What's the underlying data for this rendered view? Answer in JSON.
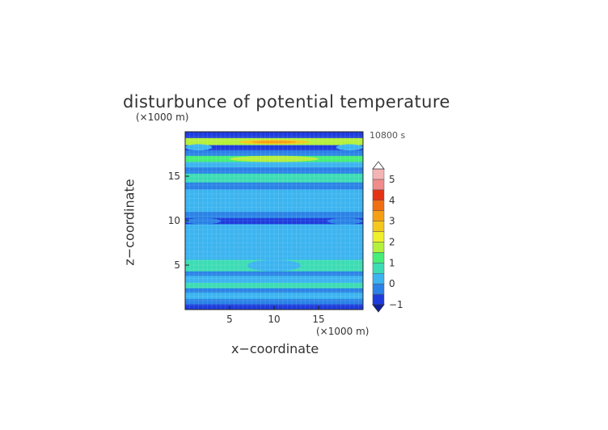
{
  "chart_data": {
    "type": "heatmap",
    "title": "disturbunce of potential temperature",
    "xlabel": "x−coordinate",
    "ylabel": "z−coordinate",
    "x_unit": "(×1000 m)",
    "z_unit": "(×1000 m)",
    "time_label": "10800 s",
    "xlim": [
      0,
      20
    ],
    "ylim": [
      0,
      20
    ],
    "x_ticks": [
      5,
      10,
      15
    ],
    "y_ticks": [
      5,
      10,
      15
    ],
    "grid": true,
    "colorbar": {
      "levels": [
        -1,
        -0.5,
        0,
        0.5,
        1,
        1.5,
        2,
        2.5,
        3,
        3.5,
        4,
        4.5,
        5
      ],
      "tick_labels": [
        5,
        4,
        3,
        2,
        1,
        0,
        -1
      ],
      "colors": [
        "#1e3cdc",
        "#2a82e6",
        "#3cb4f0",
        "#3cdcb4",
        "#46ee78",
        "#b4f03c",
        "#f0f02a",
        "#f5c81e",
        "#f5a014",
        "#f06e14",
        "#e63214",
        "#f08c8c",
        "#f5b4b4"
      ],
      "extend": "both"
    },
    "bands": [
      {
        "z": [
          0.0,
          0.6
        ],
        "level": -1
      },
      {
        "z": [
          0.6,
          1.2
        ],
        "level": -0.5
      },
      {
        "z": [
          1.2,
          1.9
        ],
        "level": 0
      },
      {
        "z": [
          1.9,
          2.4
        ],
        "level": -0.5
      },
      {
        "z": [
          2.4,
          3.0
        ],
        "level": 0.5
      },
      {
        "z": [
          3.0,
          3.8
        ],
        "level": 0
      },
      {
        "z": [
          3.8,
          4.3
        ],
        "level": -0.5
      },
      {
        "z": [
          4.3,
          5.6
        ],
        "level": 0.5
      },
      {
        "z": [
          5.6,
          6.4
        ],
        "level": 0
      },
      {
        "z": [
          6.4,
          8.5
        ],
        "level": 0
      },
      {
        "z": [
          8.5,
          9.6
        ],
        "level": 0
      },
      {
        "z": [
          9.6,
          10.3
        ],
        "level": -1
      },
      {
        "z": [
          10.3,
          11.0
        ],
        "level": -0.5
      },
      {
        "z": [
          11.0,
          13.5
        ],
        "level": 0
      },
      {
        "z": [
          13.5,
          14.3
        ],
        "level": -0.5
      },
      {
        "z": [
          14.3,
          15.3
        ],
        "level": 0.5
      },
      {
        "z": [
          15.3,
          16.0
        ],
        "level": -0.5
      },
      {
        "z": [
          16.0,
          16.6
        ],
        "level": 0
      },
      {
        "z": [
          16.6,
          17.3
        ],
        "level": 1
      },
      {
        "z": [
          17.3,
          17.9
        ],
        "level": -0.5
      },
      {
        "z": [
          17.9,
          18.5
        ],
        "level": -1
      },
      {
        "z": [
          18.5,
          19.3
        ],
        "level": 1.5
      },
      {
        "z": [
          19.3,
          20.0
        ],
        "level": -1
      }
    ],
    "features": [
      {
        "x": [
          6,
          14
        ],
        "z": [
          18.6,
          19.1
        ],
        "level": 2.5
      },
      {
        "x": [
          7.5,
          12.5
        ],
        "z": [
          18.7,
          19.0
        ],
        "level": 3
      },
      {
        "x": [
          0,
          3
        ],
        "z": [
          17.9,
          18.6
        ],
        "level": 0
      },
      {
        "x": [
          17,
          20
        ],
        "z": [
          17.9,
          18.6
        ],
        "level": 0
      },
      {
        "x": [
          5,
          15
        ],
        "z": [
          16.6,
          17.3
        ],
        "level": 1.5
      },
      {
        "x": [
          7,
          13
        ],
        "z": [
          4.3,
          5.6
        ],
        "level": 0
      },
      {
        "x": [
          0,
          4
        ],
        "z": [
          9.6,
          10.3
        ],
        "level": -0.5
      },
      {
        "x": [
          16,
          20
        ],
        "z": [
          9.6,
          10.3
        ],
        "level": -0.5
      }
    ]
  }
}
